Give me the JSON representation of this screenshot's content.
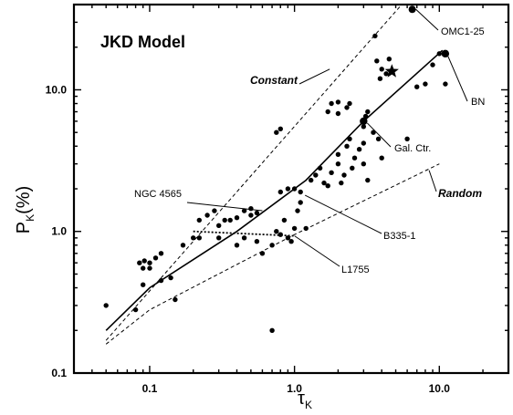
{
  "chart_data": {
    "type": "scatter",
    "title": "JKD Model",
    "xlabel": "τ",
    "xlabel_sub": "K",
    "ylabel": "P",
    "ylabel_sub": "K",
    "ylabel_suffix": "(%)",
    "x_scale": "log",
    "y_scale": "log",
    "xlim": [
      0.03,
      30
    ],
    "ylim": [
      0.1,
      40
    ],
    "x_ticks": [
      {
        "value": 0.1,
        "label": "0.1"
      },
      {
        "value": 1.0,
        "label": "1.0"
      },
      {
        "value": 10.0,
        "label": "10.0"
      }
    ],
    "y_ticks": [
      {
        "value": 0.1,
        "label": "0.1"
      },
      {
        "value": 1.0,
        "label": "1.0"
      },
      {
        "value": 10.0,
        "label": "10.0"
      }
    ],
    "grid": false,
    "points": [
      [
        0.05,
        0.3
      ],
      [
        0.08,
        0.28
      ],
      [
        0.085,
        0.6
      ],
      [
        0.09,
        0.42
      ],
      [
        0.09,
        0.55
      ],
      [
        0.092,
        0.62
      ],
      [
        0.1,
        0.6
      ],
      [
        0.1,
        0.55
      ],
      [
        0.11,
        0.65
      ],
      [
        0.12,
        0.7
      ],
      [
        0.12,
        0.45
      ],
      [
        0.14,
        0.47
      ],
      [
        0.15,
        0.33
      ],
      [
        0.17,
        0.8
      ],
      [
        0.2,
        0.9
      ],
      [
        0.22,
        0.9
      ],
      [
        0.22,
        1.2
      ],
      [
        0.25,
        1.3
      ],
      [
        0.28,
        1.4
      ],
      [
        0.3,
        1.1
      ],
      [
        0.3,
        0.9
      ],
      [
        0.33,
        1.2
      ],
      [
        0.36,
        1.2
      ],
      [
        0.4,
        1.25
      ],
      [
        0.45,
        1.4
      ],
      [
        0.5,
        1.3
      ],
      [
        0.5,
        1.45
      ],
      [
        0.55,
        1.35
      ],
      [
        0.4,
        0.8
      ],
      [
        0.45,
        0.9
      ],
      [
        0.55,
        0.85
      ],
      [
        0.6,
        0.7
      ],
      [
        0.7,
        0.8
      ],
      [
        0.75,
        1.0
      ],
      [
        0.8,
        0.95
      ],
      [
        0.85,
        1.2
      ],
      [
        0.9,
        0.9
      ],
      [
        0.95,
        0.85
      ],
      [
        1.0,
        1.05
      ],
      [
        1.05,
        1.4
      ],
      [
        1.1,
        1.6
      ],
      [
        1.1,
        1.9
      ],
      [
        0.8,
        1.9
      ],
      [
        0.9,
        2.0
      ],
      [
        0.75,
        5.0
      ],
      [
        0.8,
        5.3
      ],
      [
        1.0,
        2.0
      ],
      [
        1.2,
        1.05
      ],
      [
        1.3,
        2.3
      ],
      [
        1.4,
        2.5
      ],
      [
        1.5,
        2.8
      ],
      [
        1.6,
        2.2
      ],
      [
        1.7,
        2.1
      ],
      [
        1.8,
        2.6
      ],
      [
        2.0,
        3.0
      ],
      [
        2.0,
        3.5
      ],
      [
        2.1,
        2.2
      ],
      [
        2.2,
        2.5
      ],
      [
        2.3,
        4.0
      ],
      [
        2.4,
        4.5
      ],
      [
        2.5,
        2.8
      ],
      [
        2.6,
        3.3
      ],
      [
        2.8,
        3.8
      ],
      [
        3.0,
        4.2
      ],
      [
        3.0,
        5.5
      ],
      [
        3.0,
        6.0
      ],
      [
        3.1,
        6.5
      ],
      [
        3.2,
        7.0
      ],
      [
        3.5,
        5.0
      ],
      [
        3.8,
        4.5
      ],
      [
        4.0,
        3.3
      ],
      [
        3.0,
        3.0
      ],
      [
        3.2,
        2.3
      ],
      [
        2.3,
        7.5
      ],
      [
        2.4,
        8.0
      ],
      [
        3.7,
        16.0
      ],
      [
        3.9,
        12.0
      ],
      [
        4.0,
        14.0
      ],
      [
        4.3,
        13.0
      ],
      [
        4.5,
        16.5
      ],
      [
        1.7,
        7.0
      ],
      [
        1.8,
        8.0
      ],
      [
        2.0,
        8.2
      ],
      [
        2.0,
        6.8
      ],
      [
        6.0,
        4.5
      ],
      [
        7.0,
        10.5
      ],
      [
        8.0,
        11.0
      ],
      [
        9.0,
        15.0
      ],
      [
        10.0,
        18.0
      ],
      [
        11.0,
        11.0
      ],
      [
        3.6,
        24.0
      ],
      [
        6.5,
        37.0
      ],
      [
        0.7,
        0.2
      ]
    ],
    "solid_curve": [
      [
        0.05,
        0.2
      ],
      [
        0.1,
        0.4
      ],
      [
        0.4,
        1.0
      ],
      [
        1.2,
        2.3
      ],
      [
        3.0,
        6.0
      ],
      [
        10.5,
        19.0
      ]
    ],
    "upper_dashed": [
      [
        0.05,
        0.17
      ],
      [
        5.5,
        40.0
      ]
    ],
    "lower_dashed": [
      [
        0.05,
        0.16
      ],
      [
        0.1,
        0.28
      ],
      [
        1.0,
        0.95
      ],
      [
        10.0,
        3.0
      ]
    ],
    "dotted_segment": [
      [
        0.2,
        1.0
      ],
      [
        1.0,
        0.93
      ]
    ],
    "star": [
      4.7,
      13.5
    ],
    "labels": {
      "constant": "Constant",
      "random": "Random",
      "omc": "OMC1-25",
      "bn": "BN",
      "galctr": "Gal. Ctr.",
      "ngc": "NGC 4565",
      "b335": "B335-1",
      "l1755": "L1755"
    }
  }
}
